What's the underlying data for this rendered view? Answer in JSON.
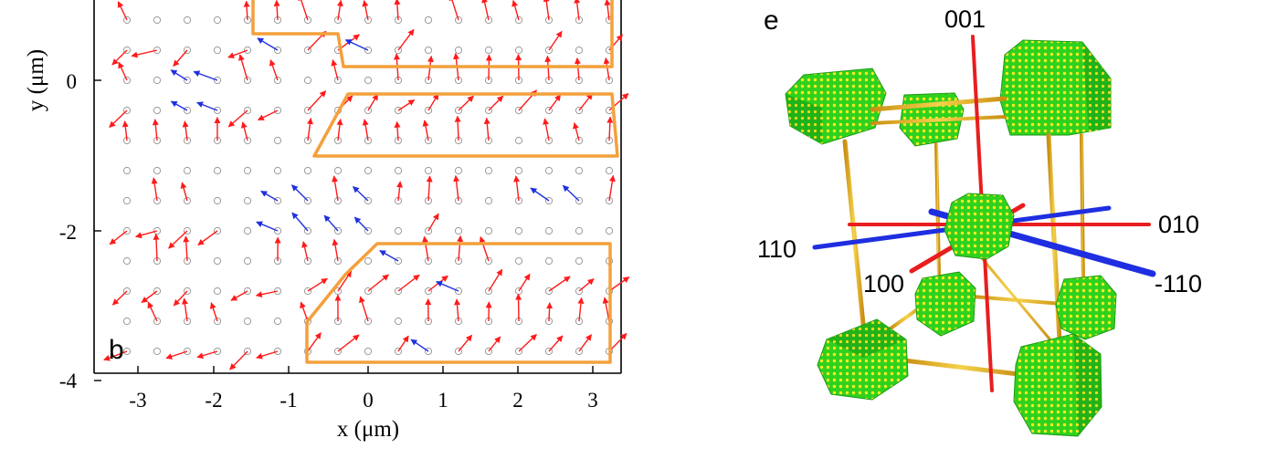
{
  "panel_b": {
    "label": "b",
    "xlabel": "x (μm)",
    "ylabel": "y (μm)",
    "xticks": [
      "-3",
      "-2",
      "-1",
      "0",
      "1",
      "2",
      "3"
    ],
    "yticks": [
      "0",
      "-2",
      "-4"
    ]
  },
  "panel_e": {
    "label": "e",
    "axis_labels": [
      "001",
      "010",
      "110",
      "100",
      "-110"
    ]
  },
  "colors": {
    "red_arrow": "#ff1a1a",
    "blue_arrow": "#1f2fe0",
    "outline": "#f4a03c",
    "lattice_point": "#9a9a9a",
    "cube_green": "#28c81e",
    "cube_yellow": "#f0e61e",
    "rod": "#e8b22a",
    "axis_red": "#e81e1e",
    "axis_blue": "#1e2ee0"
  }
}
